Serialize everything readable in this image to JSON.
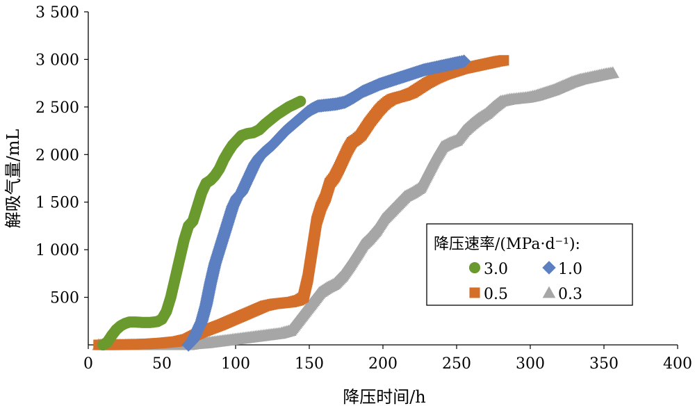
{
  "chart_data": {
    "type": "scatter",
    "title": "",
    "xlabel": "降压时间/h",
    "ylabel": "解吸气量/mL",
    "xlim": [
      0,
      400
    ],
    "ylim": [
      0,
      3500
    ],
    "x_ticks": [
      0,
      50,
      100,
      150,
      200,
      250,
      300,
      350,
      400
    ],
    "x_tick_labels": [
      "0",
      "50",
      "100",
      "150",
      "200",
      "250",
      "300",
      "350",
      "400"
    ],
    "y_ticks": [
      500,
      1000,
      1500,
      2000,
      2500,
      3000,
      3500
    ],
    "y_tick_labels": [
      "500",
      "1 000",
      "1 500",
      "2 000",
      "2 500",
      "3 000",
      "3 500"
    ],
    "grid": false,
    "legend": {
      "title": "降压速率/(MPa·d⁻¹):",
      "placement": "center-right"
    },
    "series": [
      {
        "name": "3.0",
        "marker": "circle",
        "color": "#6a9a2e",
        "points": [
          [
            10,
            0
          ],
          [
            13,
            30
          ],
          [
            16,
            100
          ],
          [
            19,
            160
          ],
          [
            22,
            200
          ],
          [
            25,
            225
          ],
          [
            28,
            240
          ],
          [
            32,
            240
          ],
          [
            37,
            235
          ],
          [
            42,
            235
          ],
          [
            47,
            245
          ],
          [
            50,
            270
          ],
          [
            53,
            350
          ],
          [
            56,
            500
          ],
          [
            59,
            700
          ],
          [
            62,
            900
          ],
          [
            65,
            1100
          ],
          [
            68,
            1250
          ],
          [
            71,
            1300
          ],
          [
            74,
            1450
          ],
          [
            77,
            1600
          ],
          [
            80,
            1700
          ],
          [
            83,
            1730
          ],
          [
            86,
            1780
          ],
          [
            89,
            1850
          ],
          [
            92,
            1950
          ],
          [
            95,
            2030
          ],
          [
            98,
            2100
          ],
          [
            101,
            2150
          ],
          [
            104,
            2200
          ],
          [
            108,
            2220
          ],
          [
            112,
            2230
          ],
          [
            116,
            2260
          ],
          [
            120,
            2320
          ],
          [
            124,
            2370
          ],
          [
            128,
            2420
          ],
          [
            132,
            2460
          ],
          [
            136,
            2500
          ],
          [
            140,
            2530
          ],
          [
            144,
            2560
          ]
        ]
      },
      {
        "name": "1.0",
        "marker": "diamond",
        "color": "#5b7fc0",
        "points": [
          [
            68,
            0
          ],
          [
            71,
            50
          ],
          [
            74,
            150
          ],
          [
            77,
            250
          ],
          [
            80,
            420
          ],
          [
            83,
            650
          ],
          [
            86,
            850
          ],
          [
            89,
            1000
          ],
          [
            92,
            1150
          ],
          [
            95,
            1300
          ],
          [
            98,
            1450
          ],
          [
            101,
            1550
          ],
          [
            104,
            1600
          ],
          [
            107,
            1700
          ],
          [
            110,
            1800
          ],
          [
            113,
            1900
          ],
          [
            116,
            1970
          ],
          [
            119,
            2020
          ],
          [
            122,
            2060
          ],
          [
            125,
            2100
          ],
          [
            128,
            2150
          ],
          [
            131,
            2200
          ],
          [
            134,
            2250
          ],
          [
            137,
            2290
          ],
          [
            140,
            2330
          ],
          [
            143,
            2370
          ],
          [
            146,
            2410
          ],
          [
            149,
            2450
          ],
          [
            152,
            2480
          ],
          [
            156,
            2510
          ],
          [
            162,
            2520
          ],
          [
            168,
            2530
          ],
          [
            174,
            2550
          ],
          [
            180,
            2600
          ],
          [
            186,
            2660
          ],
          [
            192,
            2700
          ],
          [
            198,
            2740
          ],
          [
            204,
            2770
          ],
          [
            210,
            2800
          ],
          [
            216,
            2830
          ],
          [
            222,
            2860
          ],
          [
            228,
            2890
          ],
          [
            234,
            2910
          ],
          [
            240,
            2930
          ],
          [
            246,
            2950
          ],
          [
            252,
            2970
          ],
          [
            255,
            2980
          ]
        ]
      },
      {
        "name": "0.5",
        "marker": "square",
        "color": "#d46f2a",
        "points": [
          [
            7,
            0
          ],
          [
            20,
            0
          ],
          [
            30,
            5
          ],
          [
            40,
            10
          ],
          [
            50,
            20
          ],
          [
            60,
            35
          ],
          [
            67,
            60
          ],
          [
            72,
            100
          ],
          [
            78,
            140
          ],
          [
            84,
            175
          ],
          [
            90,
            210
          ],
          [
            96,
            250
          ],
          [
            102,
            290
          ],
          [
            108,
            330
          ],
          [
            114,
            370
          ],
          [
            120,
            410
          ],
          [
            126,
            430
          ],
          [
            132,
            440
          ],
          [
            138,
            450
          ],
          [
            143,
            470
          ],
          [
            146,
            500
          ],
          [
            149,
            700
          ],
          [
            152,
            1000
          ],
          [
            155,
            1300
          ],
          [
            158,
            1450
          ],
          [
            161,
            1550
          ],
          [
            164,
            1700
          ],
          [
            167,
            1760
          ],
          [
            170,
            1850
          ],
          [
            173,
            1950
          ],
          [
            176,
            2050
          ],
          [
            179,
            2130
          ],
          [
            182,
            2160
          ],
          [
            185,
            2200
          ],
          [
            188,
            2270
          ],
          [
            191,
            2340
          ],
          [
            194,
            2400
          ],
          [
            197,
            2460
          ],
          [
            200,
            2510
          ],
          [
            203,
            2550
          ],
          [
            206,
            2580
          ],
          [
            210,
            2600
          ],
          [
            215,
            2620
          ],
          [
            220,
            2650
          ],
          [
            225,
            2700
          ],
          [
            230,
            2750
          ],
          [
            236,
            2800
          ],
          [
            242,
            2840
          ],
          [
            248,
            2870
          ],
          [
            254,
            2900
          ],
          [
            260,
            2920
          ],
          [
            266,
            2940
          ],
          [
            272,
            2960
          ],
          [
            278,
            2980
          ],
          [
            282,
            2990
          ]
        ]
      },
      {
        "name": "0.3",
        "marker": "triangle",
        "color": "#a6a6a6",
        "points": [
          [
            7,
            0
          ],
          [
            20,
            0
          ],
          [
            68,
            0
          ],
          [
            72,
            10
          ],
          [
            80,
            20
          ],
          [
            90,
            40
          ],
          [
            100,
            60
          ],
          [
            110,
            80
          ],
          [
            120,
            100
          ],
          [
            130,
            120
          ],
          [
            137,
            150
          ],
          [
            142,
            250
          ],
          [
            147,
            350
          ],
          [
            152,
            450
          ],
          [
            157,
            550
          ],
          [
            162,
            600
          ],
          [
            167,
            640
          ],
          [
            172,
            720
          ],
          [
            177,
            830
          ],
          [
            182,
            950
          ],
          [
            186,
            1050
          ],
          [
            190,
            1110
          ],
          [
            195,
            1200
          ],
          [
            200,
            1320
          ],
          [
            205,
            1400
          ],
          [
            210,
            1480
          ],
          [
            215,
            1560
          ],
          [
            220,
            1600
          ],
          [
            225,
            1650
          ],
          [
            230,
            1800
          ],
          [
            235,
            1950
          ],
          [
            240,
            2080
          ],
          [
            245,
            2120
          ],
          [
            250,
            2150
          ],
          [
            255,
            2250
          ],
          [
            260,
            2320
          ],
          [
            265,
            2380
          ],
          [
            270,
            2430
          ],
          [
            275,
            2500
          ],
          [
            280,
            2560
          ],
          [
            286,
            2580
          ],
          [
            292,
            2590
          ],
          [
            298,
            2600
          ],
          [
            304,
            2620
          ],
          [
            310,
            2650
          ],
          [
            316,
            2680
          ],
          [
            322,
            2720
          ],
          [
            328,
            2760
          ],
          [
            334,
            2790
          ],
          [
            340,
            2810
          ],
          [
            346,
            2830
          ],
          [
            352,
            2850
          ],
          [
            356,
            2860
          ]
        ]
      }
    ]
  }
}
